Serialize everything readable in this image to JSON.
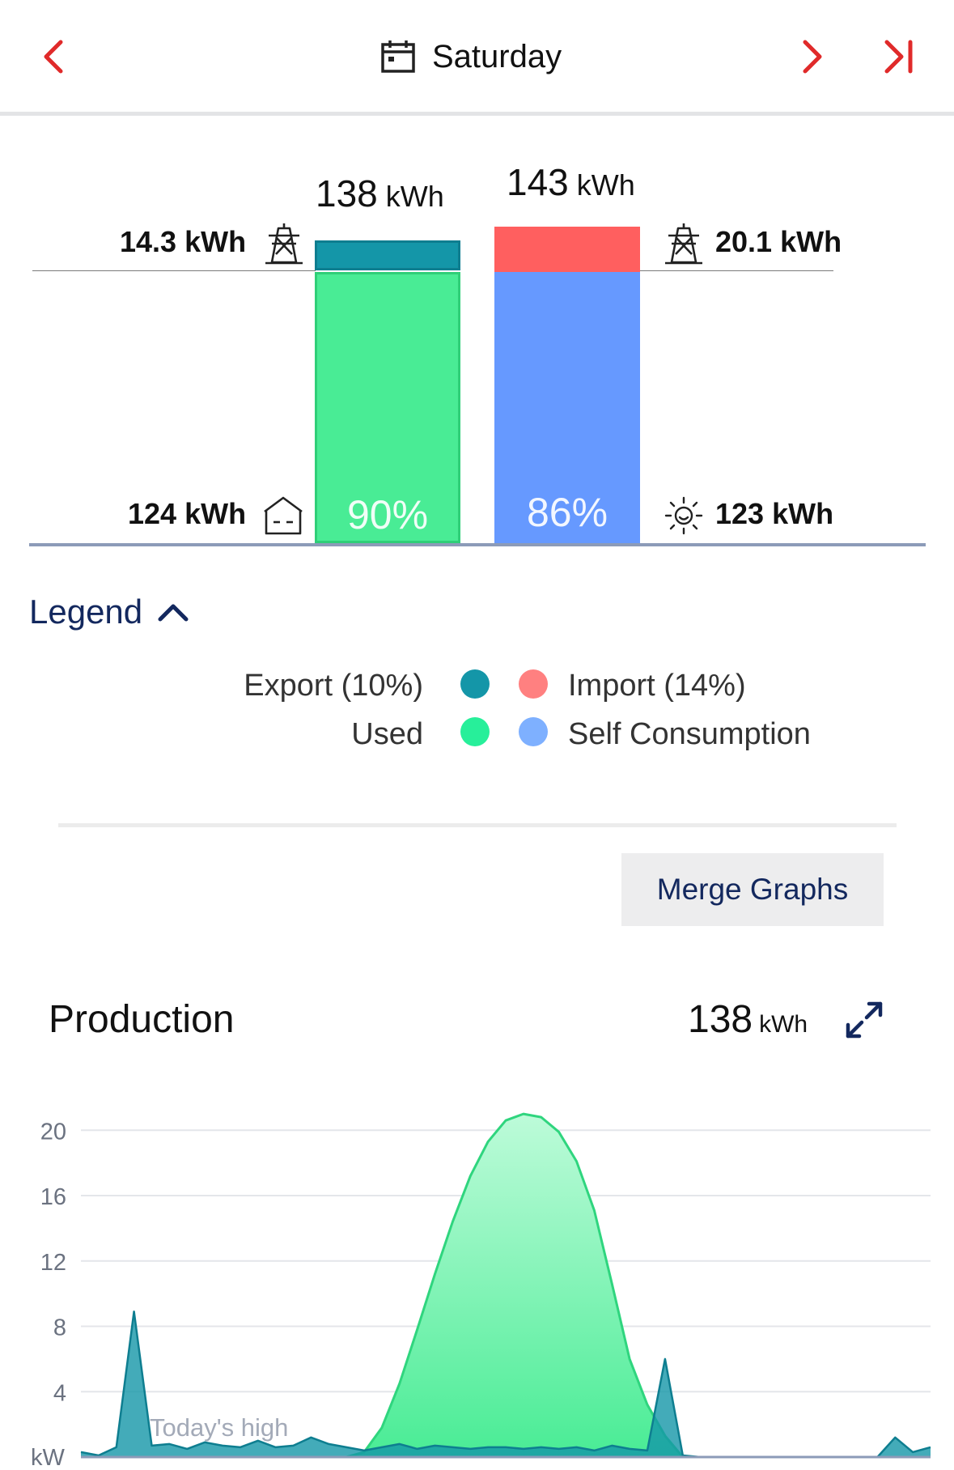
{
  "header": {
    "title": "Saturday",
    "prev_icon": "chevron-left-icon",
    "next_icon": "chevron-right-icon",
    "last_icon": "skip-to-end-icon",
    "calendar_icon": "calendar-icon"
  },
  "balance": {
    "production_total_value": "138",
    "production_total_unit": "kWh",
    "consumption_total_value": "143",
    "consumption_total_unit": "kWh",
    "export_value": "14.3 kWh",
    "import_value": "20.1 kWh",
    "used_value": "124 kWh",
    "self_consumption_value": "123 kWh",
    "used_pct": "90%",
    "self_consumption_pct": "86%",
    "export_fraction": 0.1,
    "import_fraction": 0.14,
    "colors": {
      "export": "#1496a8",
      "used": "#49ec95",
      "import": "#ff5f5f",
      "self_consumption": "#6699ff",
      "baseline": "#8c9bb8"
    }
  },
  "legend": {
    "toggle_label": "Legend",
    "export_label": "Export (10%)",
    "import_label": "Import (14%)",
    "used_label": "Used",
    "self_consumption_label": "Self Consumption"
  },
  "actions": {
    "merge_graphs_label": "Merge Graphs"
  },
  "production": {
    "title": "Production",
    "total_value": "138",
    "total_unit": "kWh"
  },
  "chart_data": {
    "type": "area",
    "title": "Production",
    "xlabel": "",
    "ylabel": "kW",
    "ylim": [
      0,
      21.5
    ],
    "yticks": [
      20,
      16,
      12,
      8,
      4
    ],
    "y_unit_label": "kW",
    "annotation": "Today's high",
    "x_hours": [
      0,
      0.5,
      1,
      1.5,
      2,
      2.5,
      3,
      3.5,
      4,
      4.5,
      5,
      5.5,
      6,
      6.5,
      7,
      7.5,
      8,
      8.5,
      9,
      9.5,
      10,
      10.5,
      11,
      11.5,
      12,
      12.5,
      13,
      13.5,
      14,
      14.5,
      15,
      15.5,
      16,
      16.5,
      17,
      17.5,
      18,
      18.5,
      19,
      19.5,
      20,
      20.5,
      21,
      21.5,
      22,
      22.5,
      23,
      23.5,
      24
    ],
    "series": [
      {
        "name": "Production",
        "color": "#49ec95",
        "values": [
          0,
          0,
          0,
          0,
          0,
          0,
          0,
          0,
          0,
          0,
          0,
          0,
          0,
          0,
          0,
          0,
          0.3,
          1.8,
          4.5,
          7.8,
          11.2,
          14.4,
          17.2,
          19.3,
          20.6,
          21.0,
          20.8,
          19.9,
          18.1,
          15.1,
          10.6,
          6.0,
          3.2,
          1.3,
          0,
          0,
          0,
          0,
          0,
          0,
          0,
          0,
          0,
          0,
          0,
          0,
          0,
          0,
          0
        ]
      },
      {
        "name": "Export",
        "color": "#1496a8",
        "values": [
          0.3,
          0.1,
          0.6,
          8.9,
          0.7,
          0.8,
          0.5,
          0.9,
          0.7,
          0.6,
          1.0,
          0.6,
          0.7,
          1.2,
          0.8,
          0.6,
          0.4,
          0.6,
          0.8,
          0.5,
          0.7,
          0.6,
          0.5,
          0.6,
          0.6,
          0.5,
          0.6,
          0.5,
          0.6,
          0.4,
          0.7,
          0.5,
          0.4,
          6.0,
          0.1,
          0,
          0,
          0,
          0,
          0,
          0,
          0,
          0,
          0,
          0,
          0,
          1.2,
          0.3,
          0.6
        ]
      }
    ]
  }
}
